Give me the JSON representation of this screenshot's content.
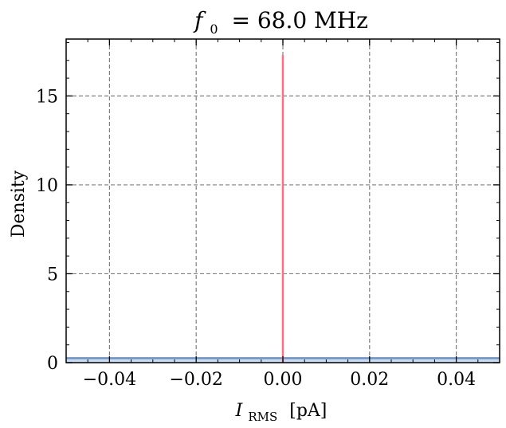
{
  "chart_data": {
    "type": "area",
    "title": "f0 = 68.0 MHz",
    "xlabel": "IRMS [pA]",
    "ylabel": "Density",
    "xlim": [
      -0.05,
      0.05
    ],
    "ylim": [
      0,
      18.2
    ],
    "xticks": [
      -0.04,
      -0.02,
      0.0,
      0.02,
      0.04
    ],
    "xtick_labels": [
      "−0.04",
      "−0.02",
      "0.00",
      "0.02",
      "0.04"
    ],
    "yticks": [
      0,
      5,
      10,
      15
    ],
    "ytick_labels": [
      "0",
      "5",
      "10",
      "15"
    ],
    "grid": true,
    "series": [
      {
        "kind": "flat-density",
        "x": [
          -0.05,
          0.05
        ],
        "y": [
          0.25,
          0.25
        ],
        "color": "#6b93c7",
        "fill": "#c6dbef"
      },
      {
        "kind": "vertical-line",
        "x": 0.0,
        "y_range": [
          0,
          17.3
        ],
        "color": "#ff6f83"
      }
    ]
  },
  "title_parts": {
    "var_main": "f",
    "var_sub": "0",
    "eq_value": "= 68.0 MHz"
  },
  "xlabel_parts": {
    "var_main": "I",
    "var_sub": "RMS",
    "unit": "[pA]"
  },
  "ylabel_text": "Density"
}
